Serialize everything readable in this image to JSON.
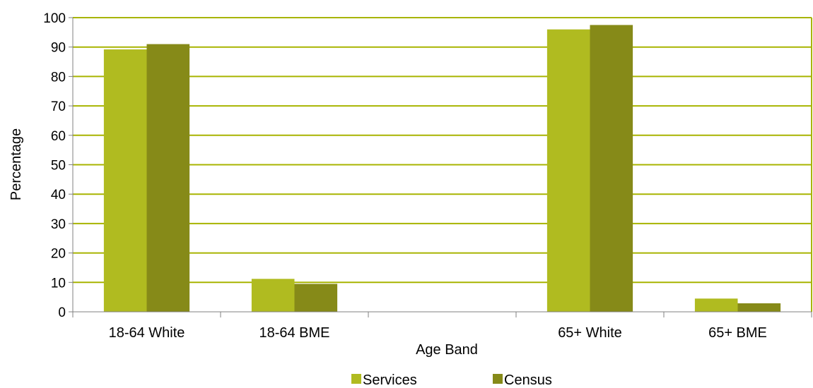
{
  "chart_data": {
    "type": "bar",
    "categories": [
      "18-64 White",
      "18-64 BME",
      "",
      "65+ White",
      "65+ BME"
    ],
    "series": [
      {
        "name": "Services",
        "values": [
          89.2,
          11.2,
          null,
          96.0,
          4.5
        ],
        "color": "#b0bb20"
      },
      {
        "name": "Census",
        "values": [
          91.0,
          9.5,
          null,
          97.5,
          2.9
        ],
        "color": "#868a18"
      }
    ],
    "title": "",
    "xlabel": "Age Band",
    "ylabel": "Percentage",
    "ylim": [
      0,
      100
    ],
    "yticks": [
      0,
      10,
      20,
      30,
      40,
      50,
      60,
      70,
      80,
      90,
      100
    ],
    "grid": true,
    "gridline_color": "#a8b400",
    "legend_position": "bottom"
  }
}
